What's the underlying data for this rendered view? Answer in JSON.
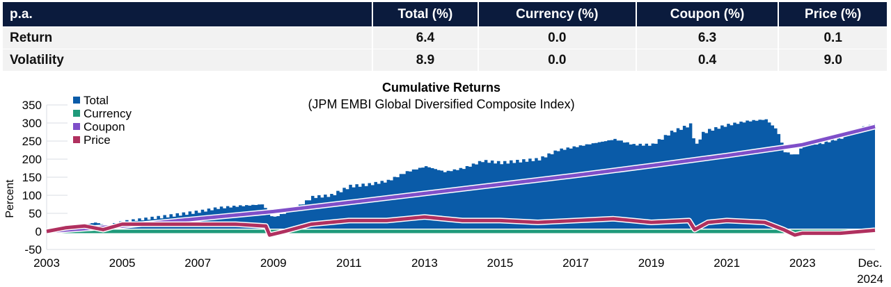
{
  "table": {
    "headers": [
      "p.a.",
      "Total (%)",
      "Currency (%)",
      "Coupon (%)",
      "Price (%)"
    ],
    "rows": [
      {
        "label": "Return",
        "values": [
          "6.4",
          "0.0",
          "6.3",
          "0.1"
        ]
      },
      {
        "label": "Volatility",
        "values": [
          "8.9",
          "0.0",
          "0.4",
          "9.0"
        ]
      }
    ]
  },
  "chart_data": {
    "type": "area",
    "title": "Cumulative Returns",
    "subtitle": "(JPM EMBI Global Diversified Composite Index)",
    "ylabel": "Percent",
    "ylim": [
      -50,
      350
    ],
    "yticks": [
      "350",
      "300",
      "250",
      "200",
      "150",
      "100",
      "50",
      "0",
      "-50"
    ],
    "xlim": [
      2003,
      2024.92
    ],
    "xticks": [
      "2003",
      "2005",
      "2007",
      "2009",
      "2011",
      "2013",
      "2015",
      "2017",
      "2019",
      "2021",
      "2023"
    ],
    "xtick_last": [
      "Dec.",
      "2024"
    ],
    "grid": true,
    "legend": "top-left",
    "series": [
      {
        "name": "Total",
        "color": "#0a5ba8",
        "kind": "area",
        "x": [
          2003,
          2003.5,
          2004,
          2004.3,
          2004.5,
          2005,
          2006,
          2007,
          2007.5,
          2008,
          2008.7,
          2008.85,
          2009,
          2009.5,
          2010,
          2010.5,
          2011,
          2011.5,
          2012,
          2012.5,
          2013,
          2013.5,
          2014,
          2014.5,
          2015,
          2015.5,
          2016,
          2016.5,
          2017,
          2017.5,
          2018,
          2018.5,
          2019,
          2019.5,
          2020,
          2020.15,
          2020.3,
          2020.5,
          2021,
          2021.5,
          2022,
          2022.3,
          2022.5,
          2022.8,
          2023,
          2023.5,
          2024,
          2024.5,
          2024.92
        ],
        "y": [
          0,
          10,
          20,
          25,
          15,
          28,
          40,
          55,
          65,
          70,
          75,
          45,
          40,
          60,
          95,
          100,
          125,
          130,
          140,
          165,
          180,
          165,
          175,
          195,
          190,
          195,
          200,
          225,
          235,
          245,
          255,
          240,
          240,
          275,
          295,
          235,
          270,
          280,
          295,
          305,
          310,
          280,
          220,
          210,
          240,
          245,
          260,
          285,
          295
        ]
      },
      {
        "name": "Currency",
        "color": "#1f9a7a",
        "kind": "line",
        "x": [
          2003,
          2024.92
        ],
        "y": [
          0,
          0
        ]
      },
      {
        "name": "Coupon",
        "color": "#7f4fc9",
        "kind": "line",
        "x": [
          2003,
          2005,
          2007,
          2009,
          2011,
          2013,
          2015,
          2017,
          2019,
          2021,
          2023,
          2024.92
        ],
        "y": [
          0,
          15,
          35,
          55,
          80,
          105,
          130,
          155,
          182,
          210,
          240,
          290
        ]
      },
      {
        "name": "Price",
        "color": "#b0305f",
        "kind": "line",
        "x": [
          2003,
          2003.5,
          2004,
          2004.5,
          2005,
          2006,
          2007,
          2008,
          2008.8,
          2008.9,
          2009.3,
          2010,
          2011,
          2012,
          2013,
          2014,
          2015,
          2016,
          2017,
          2018,
          2019,
          2020,
          2020.15,
          2020.5,
          2021,
          2022,
          2022.5,
          2022.8,
          2023,
          2024,
          2024.92
        ],
        "y": [
          0,
          10,
          15,
          5,
          20,
          20,
          20,
          20,
          15,
          -10,
          0,
          20,
          30,
          30,
          40,
          30,
          30,
          25,
          30,
          35,
          25,
          30,
          5,
          25,
          30,
          25,
          5,
          -10,
          -5,
          -5,
          3
        ]
      }
    ]
  }
}
